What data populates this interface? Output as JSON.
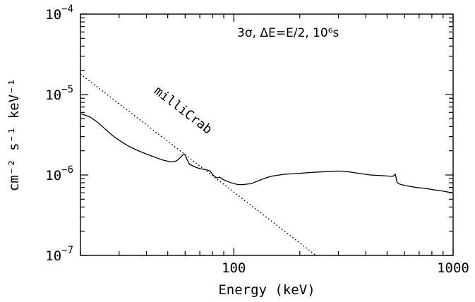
{
  "chart_data": {
    "type": "line",
    "title": "",
    "annotation": "3σ, ΔE=E/2, 10⁶s",
    "xlabel": "Energy (keV)",
    "ylabel": "cm⁻² s⁻¹ keV⁻¹",
    "xscale": "log",
    "yscale": "log",
    "xlim": [
      20,
      1000
    ],
    "ylim": [
      1e-07,
      0.0001
    ],
    "grid": false,
    "x_tick_labels": [
      {
        "value": 100,
        "label": "100"
      },
      {
        "value": 1000,
        "label": "1000"
      }
    ],
    "y_tick_labels": [
      {
        "value": 1e-07,
        "base": "10",
        "exp": "−7"
      },
      {
        "value": 1e-06,
        "base": "10",
        "exp": "−6"
      },
      {
        "value": 1e-05,
        "base": "10",
        "exp": "−5"
      },
      {
        "value": 0.0001,
        "base": "10",
        "exp": "−4"
      }
    ],
    "series": [
      {
        "style": "solid",
        "x": [
          20,
          22,
          24,
          26,
          28,
          30,
          33,
          36,
          40,
          44,
          48,
          52,
          55,
          57,
          59,
          60,
          61,
          62,
          63,
          65,
          67,
          70,
          73,
          76,
          78,
          80,
          82,
          84,
          86,
          88,
          90,
          95,
          100,
          105,
          110,
          120,
          130,
          140,
          150,
          170,
          200,
          230,
          260,
          300,
          330,
          370,
          420,
          480,
          530,
          545,
          555,
          565,
          580,
          620,
          680,
          750,
          830,
          900,
          960,
          1000
        ],
        "y": [
          5.8e-06,
          5.3e-06,
          4.5e-06,
          3.7e-06,
          3.1e-06,
          2.7e-06,
          2.3e-06,
          2.05e-06,
          1.82e-06,
          1.65e-06,
          1.52e-06,
          1.45e-06,
          1.5e-06,
          1.65e-06,
          1.82e-06,
          1.78e-06,
          1.6e-06,
          1.45e-06,
          1.35e-06,
          1.3e-06,
          1.25e-06,
          1.2e-06,
          1.18e-06,
          1.15e-06,
          1.12e-06,
          1.02e-06,
          9.5e-07,
          9.2e-07,
          9.4e-07,
          9.1e-07,
          8.7e-07,
          8.2e-07,
          7.8e-07,
          7.6e-07,
          7.6e-07,
          7.8e-07,
          8.5e-07,
          9.2e-07,
          9.7e-07,
          1.02e-06,
          1.05e-06,
          1.08e-06,
          1.1e-06,
          1.12e-06,
          1.1e-06,
          1.05e-06,
          1e-06,
          9.8e-07,
          9.6e-07,
          1.02e-06,
          8.2e-07,
          7.8e-07,
          7.6e-07,
          7.3e-07,
          7e-07,
          6.8e-07,
          6.5e-07,
          6.3e-07,
          6.1e-07,
          6e-07
        ]
      },
      {
        "style": "dotted",
        "label": "milliCrab",
        "x": [
          20,
          237
        ],
        "y": [
          1.8e-05,
          1e-07
        ]
      }
    ]
  }
}
